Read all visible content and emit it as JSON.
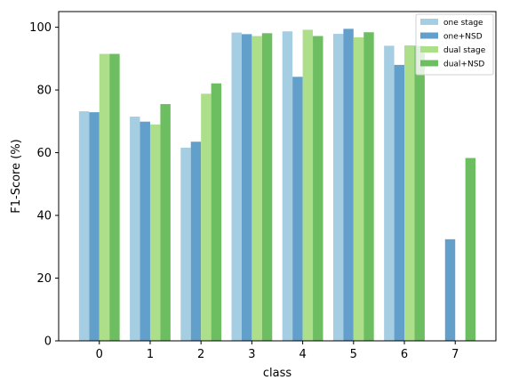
{
  "chart_data": {
    "type": "bar",
    "xlabel": "class",
    "ylabel": "F1-Score (%)",
    "categories": [
      "0",
      "1",
      "2",
      "3",
      "4",
      "5",
      "6",
      "7"
    ],
    "ylim": [
      0,
      105
    ],
    "yticks": [
      0,
      20,
      40,
      60,
      80,
      100
    ],
    "legend_position": "top-right",
    "grid": false,
    "series": [
      {
        "name": "one stage",
        "color": "#a6cee3",
        "values": [
          73.2,
          71.5,
          61.6,
          98.3,
          98.7,
          97.9,
          94.1,
          0
        ]
      },
      {
        "name": "one+NSD",
        "color": "#62a0cb",
        "values": [
          72.9,
          69.9,
          63.5,
          97.8,
          84.2,
          99.5,
          88.0,
          32.4
        ]
      },
      {
        "name": "dual stage",
        "color": "#addf8a",
        "values": [
          91.5,
          69.0,
          78.8,
          97.2,
          99.2,
          96.8,
          94.2,
          0
        ]
      },
      {
        "name": "dual+NSD",
        "color": "#6dbd61",
        "values": [
          91.5,
          75.5,
          82.1,
          98.1,
          97.2,
          98.4,
          94.1,
          58.3
        ]
      }
    ]
  }
}
